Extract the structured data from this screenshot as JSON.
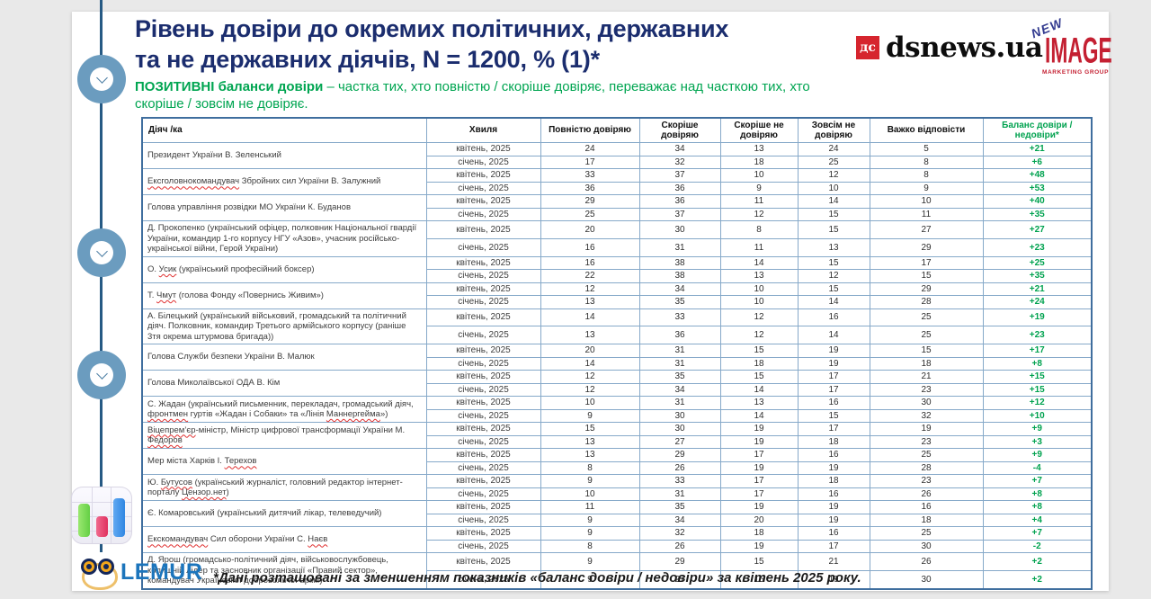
{
  "header": {
    "title_line1": "Рівень довіри до окремих політичних, державних",
    "title_line2": "та не державних  діячів, N = 1200, % (1)*",
    "subtitle_bold": "ПОЗИТИВНІ баланси довіри",
    "subtitle_rest": " – частка тих, хто повністю / скоріше довіряє, переважає над часткою тих, хто скоріше / зовсім не довіряє."
  },
  "logos": {
    "dsnews": {
      "badge": "дс",
      "text": "dsnews.ua"
    },
    "new_image": {
      "line1": "NEW",
      "line2": "IMAGE",
      "line3": "MARKETING GROUP"
    },
    "lemur": {
      "text": "LEMUR"
    }
  },
  "footer": {
    "note": "*Дані розташовані за зменшенням показників «баланс довіри / недовіри» за квітень 2025 року."
  },
  "colors": {
    "title_navy": "#1b2d6e",
    "positive_green": "#00a551",
    "table_border_blue": "#86a9c9",
    "timeline_blue": "#265a84",
    "circle_blue": "#6b9cbf",
    "dsnews_red": "#d6252e",
    "newimage_red": "#c42032",
    "lemur_blue": "#1c75bc"
  },
  "chart_data": {
    "type": "table",
    "title": "Рівень довіри до окремих політичних, державних та не державних діячів, N = 1200, % (1)*",
    "columns": [
      "Діяч /ка",
      "Хвиля",
      "Повністю довіряю",
      "Скоріше довіряю",
      "Скоріше не довіряю",
      "Зовсім не довіряю",
      "Важко відповісти",
      "Баланс довіри / недовіри*"
    ],
    "people": [
      {
        "name": "Президент України В. Зеленський",
        "misspelled": [],
        "waves": [
          {
            "wave": "квітень, 2025",
            "values": [
              24,
              34,
              13,
              24,
              5
            ],
            "balance": "+21"
          },
          {
            "wave": "січень, 2025",
            "values": [
              17,
              32,
              18,
              25,
              8
            ],
            "balance": "+6"
          }
        ]
      },
      {
        "name": "Ексголовнокомандувач Збройних сил України В. Залужний",
        "misspelled": [
          "Ексголовнокомандувач"
        ],
        "waves": [
          {
            "wave": "квітень, 2025",
            "values": [
              33,
              37,
              10,
              12,
              8
            ],
            "balance": "+48"
          },
          {
            "wave": "січень, 2025",
            "values": [
              36,
              36,
              9,
              10,
              9
            ],
            "balance": "+53"
          }
        ]
      },
      {
        "name": "Голова управління розвідки МО України К. Буданов",
        "misspelled": [],
        "waves": [
          {
            "wave": "квітень, 2025",
            "values": [
              29,
              36,
              11,
              14,
              10
            ],
            "balance": "+40"
          },
          {
            "wave": "січень, 2025",
            "values": [
              25,
              37,
              12,
              15,
              11
            ],
            "balance": "+35"
          }
        ]
      },
      {
        "name": "Д. Прокопенко (український офіцер, полковник Національної гвардії України, командир 1-го корпусу НГУ «Азов», учасник російсько-української війни, Герой України)",
        "misspelled": [],
        "waves": [
          {
            "wave": "квітень, 2025",
            "values": [
              20,
              30,
              8,
              15,
              27
            ],
            "balance": "+27"
          },
          {
            "wave": "січень, 2025",
            "values": [
              16,
              31,
              11,
              13,
              29
            ],
            "balance": "+23"
          }
        ]
      },
      {
        "name": "О. Усик (український професійний боксер)",
        "misspelled": [
          "Усик"
        ],
        "waves": [
          {
            "wave": "квітень, 2025",
            "values": [
              16,
              38,
              14,
              15,
              17
            ],
            "balance": "+25"
          },
          {
            "wave": "січень, 2025",
            "values": [
              22,
              38,
              13,
              12,
              15
            ],
            "balance": "+35"
          }
        ]
      },
      {
        "name": "Т. Чмут (голова Фонду «Повернись Живим»)",
        "misspelled": [
          "Чмут"
        ],
        "waves": [
          {
            "wave": "квітень, 2025",
            "values": [
              12,
              34,
              10,
              15,
              29
            ],
            "balance": "+21"
          },
          {
            "wave": "січень, 2025",
            "values": [
              13,
              35,
              10,
              14,
              28
            ],
            "balance": "+24"
          }
        ]
      },
      {
        "name": "А. Білецький (український військовий, громадський та політичний діяч. Полковник, командир Третього армійського корпусу (раніше 3тя окрема штурмова бригада))",
        "misspelled": [],
        "waves": [
          {
            "wave": "квітень, 2025",
            "values": [
              14,
              33,
              12,
              16,
              25
            ],
            "balance": "+19"
          },
          {
            "wave": "січень, 2025",
            "values": [
              13,
              36,
              12,
              14,
              25
            ],
            "balance": "+23"
          }
        ]
      },
      {
        "name": "Голова Служби безпеки України В. Малюк",
        "misspelled": [],
        "waves": [
          {
            "wave": "квітень, 2025",
            "values": [
              20,
              31,
              15,
              19,
              15
            ],
            "balance": "+17"
          },
          {
            "wave": "січень, 2025",
            "values": [
              14,
              31,
              18,
              19,
              18
            ],
            "balance": "+8"
          }
        ]
      },
      {
        "name": "Голова Миколаївської ОДА В. Кім",
        "misspelled": [],
        "waves": [
          {
            "wave": "квітень, 2025",
            "values": [
              12,
              35,
              15,
              17,
              21
            ],
            "balance": "+15"
          },
          {
            "wave": "січень, 2025",
            "values": [
              12,
              34,
              14,
              17,
              23
            ],
            "balance": "+15"
          }
        ]
      },
      {
        "name": "С. Жадан (український письменник, перекладач, громадський діяч, фронтмен гуртів «Жадан і Собаки» та «Лінія Маннергейма»)",
        "misspelled": [
          "фронтмен",
          "Маннергейма"
        ],
        "waves": [
          {
            "wave": "квітень, 2025",
            "values": [
              10,
              31,
              13,
              16,
              30
            ],
            "balance": "+12"
          },
          {
            "wave": "січень, 2025",
            "values": [
              9,
              30,
              14,
              15,
              32
            ],
            "balance": "+10"
          }
        ]
      },
      {
        "name": "Віцепрем’єр-міністр, Міністр цифрової трансформації України М. Федоров",
        "misspelled": [
          "Віцепрем’єр",
          "Федоров"
        ],
        "waves": [
          {
            "wave": "квітень, 2025",
            "values": [
              15,
              30,
              19,
              17,
              19
            ],
            "balance": "+9"
          },
          {
            "wave": "січень, 2025",
            "values": [
              13,
              27,
              19,
              18,
              23
            ],
            "balance": "+3"
          }
        ]
      },
      {
        "name": "Мер міста Харків І. Терехов",
        "misspelled": [
          "Терехов"
        ],
        "waves": [
          {
            "wave": "квітень, 2025",
            "values": [
              13,
              29,
              17,
              16,
              25
            ],
            "balance": "+9"
          },
          {
            "wave": "січень, 2025",
            "values": [
              8,
              26,
              19,
              19,
              28
            ],
            "balance": "-4"
          }
        ]
      },
      {
        "name": "Ю. Бутусов (український журналіст, головний редактор інтернет-порталу Цензор.нет)",
        "misspelled": [
          "Бутусов",
          "Цензор.нет"
        ],
        "waves": [
          {
            "wave": "квітень, 2025",
            "values": [
              9,
              33,
              17,
              18,
              23
            ],
            "balance": "+7"
          },
          {
            "wave": "січень, 2025",
            "values": [
              10,
              31,
              17,
              16,
              26
            ],
            "balance": "+8"
          }
        ]
      },
      {
        "name": "Є. Комаровський (український дитячий лікар, телеведучий)",
        "misspelled": [],
        "waves": [
          {
            "wave": "квітень, 2025",
            "values": [
              11,
              35,
              19,
              19,
              16
            ],
            "balance": "+8"
          },
          {
            "wave": "січень, 2025",
            "values": [
              9,
              34,
              20,
              19,
              18
            ],
            "balance": "+4"
          }
        ]
      },
      {
        "name": "Екскомандувач Сил оборони України С. Наєв",
        "misspelled": [
          "Екскомандувач",
          "Наєв"
        ],
        "waves": [
          {
            "wave": "квітень, 2025",
            "values": [
              9,
              32,
              18,
              16,
              25
            ],
            "balance": "+7"
          },
          {
            "wave": "січень, 2025",
            "values": [
              8,
              26,
              19,
              17,
              30
            ],
            "balance": "-2"
          }
        ]
      },
      {
        "name": "Д. Ярош (громадсько-політичний діяч, військовослужбовець, колишній лідер та засновник організації «Правий сектор», командувач Української добровольчої армії)",
        "misspelled": [],
        "waves": [
          {
            "wave": "квітень, 2025",
            "values": [
              9,
              29,
              15,
              21,
              26
            ],
            "balance": "+2"
          },
          {
            "wave": "січень, 2025",
            "values": [
              9,
              27,
              15,
              19,
              30
            ],
            "balance": "+2"
          }
        ]
      }
    ]
  }
}
